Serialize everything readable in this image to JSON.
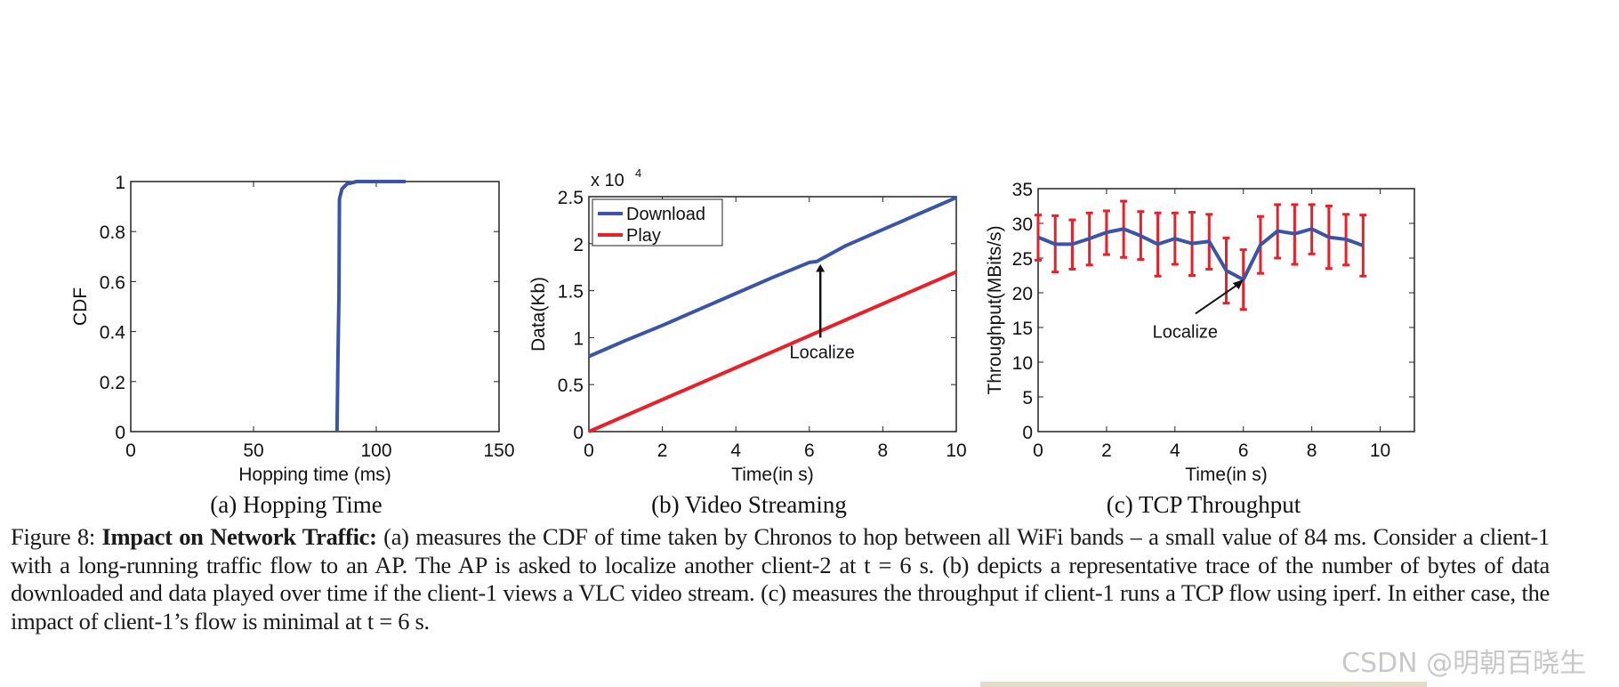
{
  "chart_data": [
    {
      "type": "line",
      "xlabel": "Hopping time (ms)",
      "ylabel": "CDF",
      "xlim": [
        0,
        150
      ],
      "ylim": [
        0,
        1
      ],
      "xticks": [
        "0",
        "50",
        "100",
        "150"
      ],
      "yticks": [
        "0",
        "0.2",
        "0.4",
        "0.6",
        "0.8",
        "1"
      ],
      "series": [
        {
          "color": "#3a55a8",
          "x": [
            84,
            84.4,
            84.8,
            85,
            86,
            88,
            92,
            112
          ],
          "y": [
            0,
            0.3,
            0.55,
            0.93,
            0.97,
            0.99,
            1,
            1
          ]
        }
      ],
      "subcaption": "(a) Hopping Time"
    },
    {
      "type": "line",
      "xlabel": "Time(in s)",
      "ylabel": "Data(Kb)",
      "multiplier": "x 10",
      "multiplier_exp": "4",
      "xlim": [
        0,
        10
      ],
      "ylim": [
        0,
        25000
      ],
      "xticks": [
        "0",
        "2",
        "4",
        "6",
        "8",
        "10"
      ],
      "yticks": [
        "0",
        "0.5",
        "1",
        "1.5",
        "2",
        "2.5"
      ],
      "legend": "top-left",
      "series": [
        {
          "name": "Download",
          "color": "#3a55a8",
          "x": [
            0,
            1,
            2,
            3,
            4,
            5,
            6,
            6.2,
            7,
            8,
            9,
            10
          ],
          "y": [
            8000,
            9700,
            11300,
            13000,
            14700,
            16400,
            18000,
            18100,
            19800,
            21500,
            23200,
            24900
          ]
        },
        {
          "name": "Play",
          "color": "#e8202a",
          "x": [
            0,
            10
          ],
          "y": [
            0,
            17000
          ]
        }
      ],
      "annotation": {
        "text": "Localize",
        "x": 6.3,
        "y": 18000
      },
      "subcaption": "(b) Video Streaming"
    },
    {
      "type": "line",
      "xlabel": "Time(in s)",
      "ylabel": "Throughput(MBits/s)",
      "xlim": [
        0,
        11
      ],
      "ylim": [
        0,
        35
      ],
      "xticks": [
        "0",
        "2",
        "4",
        "6",
        "8",
        "10"
      ],
      "yticks": [
        "0",
        "5",
        "10",
        "15",
        "20",
        "25",
        "30",
        "35"
      ],
      "series": [
        {
          "color": "#3a55a8",
          "errorbar_color": "#e8202a",
          "x": [
            0,
            0.5,
            1,
            1.5,
            2,
            2.5,
            3,
            3.5,
            4,
            4.5,
            5,
            5.5,
            6,
            6.5,
            7,
            7.5,
            8,
            8.5,
            9,
            9.5
          ],
          "y": [
            28,
            27,
            27,
            27.8,
            28.7,
            29.2,
            28.2,
            27,
            27.8,
            27.1,
            27.4,
            23.2,
            21.9,
            26.9,
            28.9,
            28.5,
            29.2,
            28,
            27.7,
            26.8
          ],
          "low": [
            24.7,
            23,
            23.4,
            24,
            25.5,
            25.1,
            24.8,
            22.4,
            24.1,
            22.5,
            23.4,
            18.5,
            17.6,
            22.8,
            25,
            24.1,
            25.6,
            23.5,
            24,
            22.4
          ],
          "high": [
            31.2,
            31.1,
            30.5,
            31.5,
            31.8,
            33.2,
            31.7,
            31.5,
            31.5,
            31.6,
            31.3,
            27.9,
            26.2,
            31,
            32.7,
            32.7,
            32.7,
            32.5,
            31.3,
            31.2
          ]
        }
      ],
      "annotation": {
        "text": "Localize",
        "x": 6,
        "y": 21.9
      },
      "subcaption": "(c) TCP Throughput"
    }
  ],
  "caption": {
    "label": "Figure 8:",
    "title": "Impact on Network Traffic:",
    "body": " (a) measures the CDF of time taken by Chronos to hop between all WiFi bands – a small value of 84 ms. Consider a client-1 with a long-running traffic flow to an AP. The AP is asked to localize another client-2 at t = 6 s. (b) depicts a representative trace of the number of bytes of data downloaded and data played over time if the client-1 views a VLC video stream. (c) measures the throughput if client-1 runs a TCP flow using iperf. In either case, the impact of client-1’s flow is minimal at t = 6 s."
  },
  "watermark": "CSDN @明朝百晓生"
}
